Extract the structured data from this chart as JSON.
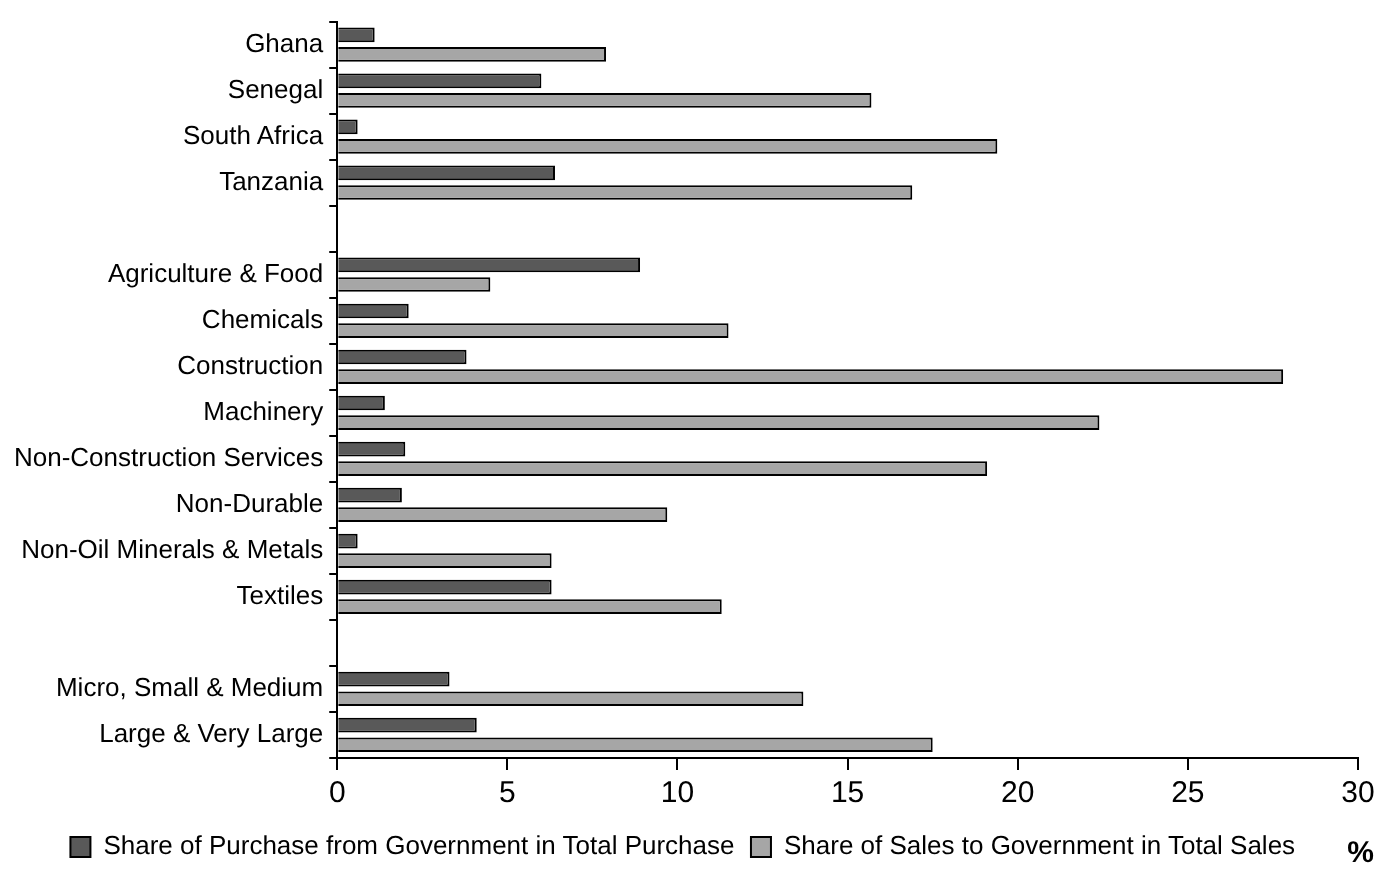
{
  "chart_data": {
    "type": "bar",
    "orientation": "horizontal",
    "xlabel": "%",
    "categories": [
      "Ghana",
      "Senegal",
      "South Africa",
      "Tanzania",
      null,
      "Agriculture & Food",
      "Chemicals",
      "Construction",
      "Machinery",
      "Non-Construction Services",
      "Non-Durable",
      "Non-Oil Minerals & Metals",
      "Textiles",
      null,
      "Micro, Small & Medium",
      "Large & Very Large"
    ],
    "series": [
      {
        "name": "Share of Purchase from Government in Total Purchase",
        "color": "#595959",
        "values": [
          1.1,
          6.0,
          0.6,
          6.4,
          null,
          8.9,
          2.1,
          3.8,
          1.4,
          2.0,
          1.9,
          0.6,
          6.3,
          null,
          3.3,
          4.1
        ]
      },
      {
        "name": "Share of Sales to Government in Total Sales",
        "color": "#a6a6a6",
        "values": [
          7.9,
          15.7,
          19.4,
          16.9,
          null,
          4.5,
          11.5,
          27.8,
          22.4,
          19.1,
          9.7,
          6.3,
          11.3,
          null,
          13.7,
          17.5
        ]
      }
    ],
    "xlim": [
      0,
      30
    ],
    "xticks": [
      0,
      5,
      10,
      15,
      20,
      25,
      30
    ],
    "grid": false,
    "legend": "bottom"
  }
}
